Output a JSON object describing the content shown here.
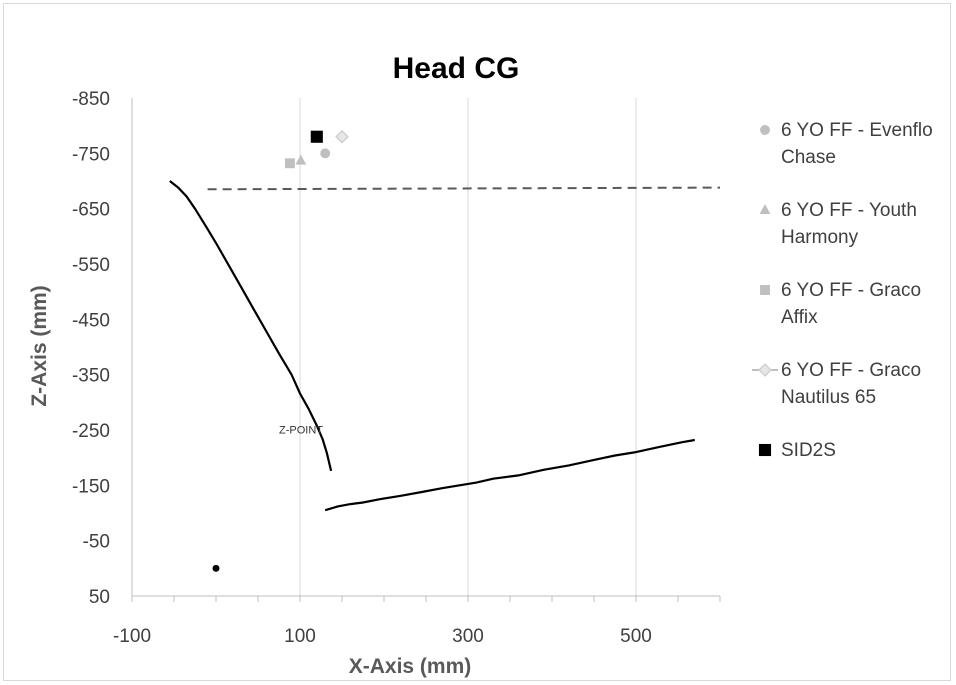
{
  "chart_data": {
    "type": "scatter",
    "title": "Head CG",
    "xlabel": "X-Axis (mm)",
    "ylabel": "Z-Axis (mm)",
    "xlim": [
      -100,
      600
    ],
    "ylim": [
      50,
      -850
    ],
    "x_ticks": [
      -100,
      100,
      300,
      500
    ],
    "y_ticks": [
      -850,
      -750,
      -650,
      -550,
      -450,
      -350,
      -250,
      -150,
      -50,
      50
    ],
    "x_tick_labels": [
      "-100",
      "100",
      "300",
      "500"
    ],
    "y_tick_labels": [
      "-850",
      "-750",
      "-650",
      "-550",
      "-450",
      "-350",
      "-250",
      "-150",
      "-50",
      "50"
    ],
    "grid": "vertical",
    "legend_placement": "right",
    "series": [
      {
        "name": "6 YO FF - Evenflo Chase",
        "marker": "circle",
        "color": "#bfbfbf",
        "points": [
          {
            "x": 130,
            "y": -750
          }
        ]
      },
      {
        "name": "6 YO FF - Youth Harmony",
        "marker": "triangle",
        "color": "#bfbfbf",
        "points": [
          {
            "x": 101,
            "y": -737
          }
        ]
      },
      {
        "name": "6 YO FF - Graco Affix",
        "marker": "square",
        "color": "#bfbfbf",
        "points": [
          {
            "x": 88,
            "y": -732
          }
        ]
      },
      {
        "name": "6 YO FF - Graco Nautilus 65",
        "marker": "diamond",
        "color": "#d0d0d0",
        "points": [
          {
            "x": 150,
            "y": -780
          }
        ]
      },
      {
        "name": "SID2S",
        "marker": "square",
        "color": "#000000",
        "points": [
          {
            "x": 120,
            "y": -780
          }
        ]
      }
    ],
    "lines": [
      {
        "id": "dashed-reference",
        "style": "dashed",
        "color": "#595959",
        "points": [
          [
            -10,
            -685
          ],
          [
            600,
            -688
          ]
        ]
      },
      {
        "id": "descending-curve",
        "style": "solid",
        "color": "#000000",
        "points": [
          [
            -55,
            -700
          ],
          [
            -45,
            -688
          ],
          [
            -35,
            -672
          ],
          [
            -25,
            -650
          ],
          [
            -10,
            -613
          ],
          [
            0,
            -588
          ],
          [
            15,
            -548
          ],
          [
            30,
            -508
          ],
          [
            45,
            -468
          ],
          [
            60,
            -428
          ],
          [
            75,
            -388
          ],
          [
            90,
            -350
          ],
          [
            100,
            -316
          ],
          [
            110,
            -289
          ],
          [
            120,
            -258
          ],
          [
            127,
            -233
          ],
          [
            132,
            -208
          ],
          [
            137,
            -176
          ]
        ]
      },
      {
        "id": "ascending-curve",
        "style": "solid",
        "color": "#000000",
        "points": [
          [
            130,
            -105
          ],
          [
            145,
            -112
          ],
          [
            160,
            -116
          ],
          [
            175,
            -119
          ],
          [
            195,
            -125
          ],
          [
            220,
            -131
          ],
          [
            245,
            -138
          ],
          [
            270,
            -145
          ],
          [
            290,
            -150
          ],
          [
            310,
            -155
          ],
          [
            330,
            -162
          ],
          [
            360,
            -168
          ],
          [
            390,
            -178
          ],
          [
            420,
            -186
          ],
          [
            450,
            -196
          ],
          [
            475,
            -204
          ],
          [
            500,
            -210
          ],
          [
            530,
            -220
          ],
          [
            555,
            -228
          ],
          [
            570,
            -232
          ]
        ]
      }
    ],
    "extra_points": [
      {
        "id": "origin-dot",
        "x": 0,
        "y": 0,
        "color": "#000000"
      }
    ],
    "annotations": [
      {
        "text": "Z-POINT",
        "x": 75,
        "y": -244
      }
    ]
  }
}
